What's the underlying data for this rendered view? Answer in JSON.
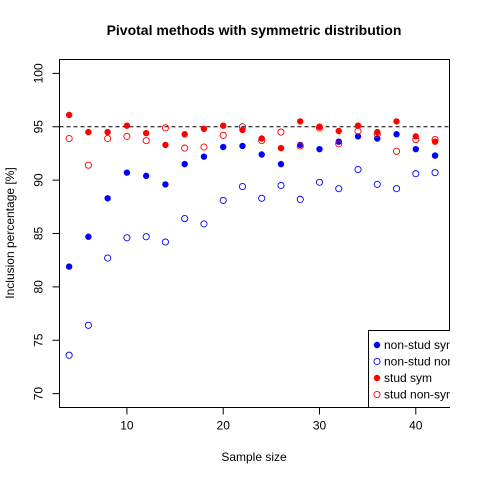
{
  "chart_data": {
    "type": "scatter",
    "title": "Pivotal methods with symmetric distribution",
    "xlabel": "Sample size",
    "ylabel": "Inclusion percentage [%]",
    "xlim": [
      3,
      43.5
    ],
    "ylim": [
      68.7,
      101.3
    ],
    "xticks": [
      10,
      20,
      30,
      40
    ],
    "yticks": [
      70,
      75,
      80,
      85,
      90,
      95,
      100
    ],
    "reference_line": 95,
    "x": [
      4,
      6,
      8,
      10,
      12,
      14,
      16,
      18,
      20,
      22,
      24,
      26,
      28,
      30,
      32,
      34,
      36,
      38,
      40,
      42
    ],
    "series": [
      {
        "name": "non-stud sym",
        "color": "#0000ff",
        "marker": "filled-circle",
        "values": [
          81.9,
          84.7,
          88.3,
          90.7,
          90.4,
          89.6,
          91.5,
          92.2,
          93.1,
          93.2,
          92.4,
          91.5,
          93.3,
          92.9,
          93.6,
          94.1,
          93.9,
          94.3,
          92.9,
          92.3
        ]
      },
      {
        "name": "non-stud non-sym",
        "color": "#0000ff",
        "marker": "open-circle",
        "values": [
          73.6,
          76.4,
          82.7,
          84.6,
          84.7,
          84.2,
          86.4,
          85.9,
          88.1,
          89.4,
          88.3,
          89.5,
          88.2,
          89.8,
          89.2,
          91.0,
          89.6,
          89.2,
          90.6,
          90.7
        ]
      },
      {
        "name": "stud sym",
        "color": "#ff0000",
        "marker": "filled-circle",
        "values": [
          96.1,
          94.5,
          94.5,
          95.1,
          94.4,
          93.3,
          94.3,
          94.8,
          95.1,
          94.7,
          93.9,
          93.0,
          95.5,
          95.0,
          94.6,
          95.1,
          94.5,
          95.5,
          94.1,
          93.6
        ]
      },
      {
        "name": "stud non-sym",
        "color": "#ff0000",
        "marker": "open-circle",
        "values": [
          93.9,
          91.4,
          93.9,
          94.1,
          93.7,
          94.9,
          93.0,
          93.1,
          94.2,
          95.0,
          93.7,
          94.5,
          93.2,
          94.9,
          93.4,
          94.6,
          94.3,
          92.7,
          93.8,
          93.8
        ]
      }
    ],
    "legend": {
      "position": "bottom-right",
      "entries": [
        "non-stud sym",
        "non-stud non-sym",
        "stud sym",
        "stud non-sym"
      ]
    }
  }
}
